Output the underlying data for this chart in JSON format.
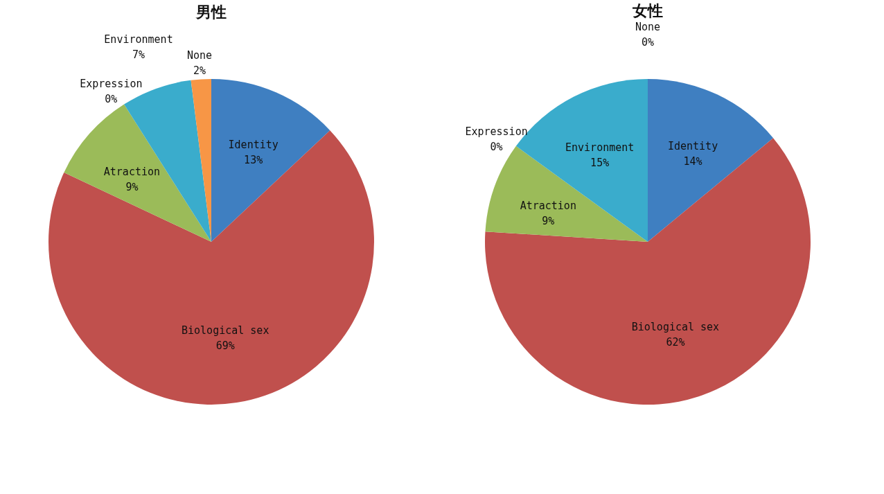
{
  "chart_data": [
    {
      "type": "pie",
      "title": "男性",
      "categories": [
        "Identity",
        "Biological sex",
        "Atraction",
        "Expression",
        "Environment",
        "None"
      ],
      "values": [
        13,
        69,
        9,
        0,
        7,
        2
      ],
      "value_labels": [
        "13%",
        "69%",
        "9%",
        "0%",
        "7%",
        "2%"
      ],
      "colors": [
        "#3f7fc1",
        "#c0504d",
        "#9bbb59",
        "#8064a2",
        "#3aaccc",
        "#f79646"
      ]
    },
    {
      "type": "pie",
      "title": "女性",
      "categories": [
        "Identity",
        "Biological sex",
        "Atraction",
        "Expression",
        "Environment",
        "None"
      ],
      "values": [
        14,
        62,
        9,
        0,
        15,
        0
      ],
      "value_labels": [
        "14%",
        "62%",
        "9%",
        "0%",
        "15%",
        "0%"
      ],
      "colors": [
        "#3f7fc1",
        "#c0504d",
        "#9bbb59",
        "#8064a2",
        "#3aaccc",
        "#f79646"
      ]
    }
  ]
}
